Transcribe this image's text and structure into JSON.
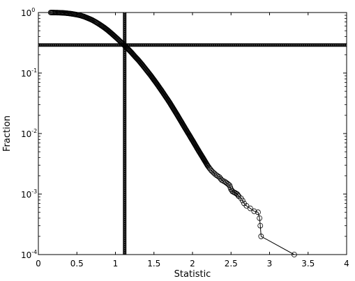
{
  "chart_data": {
    "type": "scatter",
    "title": "",
    "xlabel": "Statistic",
    "ylabel": "Fraction",
    "xlim": [
      0,
      4
    ],
    "ylim": [
      0.0001,
      1
    ],
    "yscale": "log",
    "grid": false,
    "legend": "none",
    "x_ticks": [
      0,
      0.5,
      1,
      1.5,
      2,
      2.5,
      3,
      3.5,
      4
    ],
    "x_tick_labels": [
      "0",
      "0.5",
      "1",
      "1.5",
      "2",
      "2.5",
      "3",
      "3.5",
      "4"
    ],
    "y_ticks": [
      {
        "value": 1,
        "base": "10",
        "exp": "0"
      },
      {
        "value": 0.1,
        "base": "10",
        "exp": "-1"
      },
      {
        "value": 0.01,
        "base": "10",
        "exp": "-2"
      },
      {
        "value": 0.001,
        "base": "10",
        "exp": "-3"
      },
      {
        "value": 0.0001,
        "base": "10",
        "exp": "-4"
      }
    ],
    "reference_lines": {
      "vertical_x": 1.12,
      "horizontal_y": 0.29
    },
    "series": [
      {
        "marker": "circle",
        "line": true,
        "color": "#000000",
        "points": [
          [
            0.16,
            1.0
          ],
          [
            0.2,
            0.998
          ],
          [
            0.25,
            0.995
          ],
          [
            0.3,
            0.99
          ],
          [
            0.35,
            0.98
          ],
          [
            0.4,
            0.965
          ],
          [
            0.45,
            0.945
          ],
          [
            0.5,
            0.92
          ],
          [
            0.55,
            0.89
          ],
          [
            0.6,
            0.85
          ],
          [
            0.65,
            0.8
          ],
          [
            0.7,
            0.75
          ],
          [
            0.75,
            0.69
          ],
          [
            0.8,
            0.63
          ],
          [
            0.85,
            0.57
          ],
          [
            0.9,
            0.51
          ],
          [
            0.95,
            0.45
          ],
          [
            1.0,
            0.395
          ],
          [
            1.05,
            0.345
          ],
          [
            1.1,
            0.3
          ],
          [
            1.15,
            0.26
          ],
          [
            1.2,
            0.224
          ],
          [
            1.25,
            0.19
          ],
          [
            1.3,
            0.162
          ],
          [
            1.35,
            0.136
          ],
          [
            1.4,
            0.113
          ],
          [
            1.45,
            0.094
          ],
          [
            1.5,
            0.077
          ],
          [
            1.55,
            0.063
          ],
          [
            1.6,
            0.051
          ],
          [
            1.65,
            0.041
          ],
          [
            1.7,
            0.033
          ],
          [
            1.75,
            0.026
          ],
          [
            1.8,
            0.0205
          ],
          [
            1.85,
            0.016
          ],
          [
            1.9,
            0.0125
          ],
          [
            1.95,
            0.0098
          ],
          [
            2.0,
            0.0077
          ],
          [
            2.05,
            0.006
          ],
          [
            2.1,
            0.0047
          ],
          [
            2.15,
            0.0037
          ],
          [
            2.2,
            0.0029
          ],
          [
            2.25,
            0.0024
          ],
          [
            2.3,
            0.0021
          ],
          [
            2.35,
            0.0019
          ],
          [
            2.38,
            0.0017
          ],
          [
            2.42,
            0.0016
          ],
          [
            2.45,
            0.0015
          ],
          [
            2.48,
            0.0014
          ],
          [
            2.5,
            0.0012
          ],
          [
            2.52,
            0.0011
          ],
          [
            2.55,
            0.00105
          ],
          [
            2.58,
            0.001
          ],
          [
            2.6,
            0.00092
          ],
          [
            2.63,
            0.00085
          ],
          [
            2.65,
            0.00078
          ],
          [
            2.67,
            0.0007
          ],
          [
            2.7,
            0.00064
          ],
          [
            2.75,
            0.00058
          ],
          [
            2.8,
            0.00052
          ],
          [
            2.85,
            0.0005
          ],
          [
            2.87,
            0.0004
          ],
          [
            2.88,
            0.0003
          ],
          [
            2.89,
            0.0002
          ],
          [
            3.32,
            0.0001
          ]
        ]
      }
    ]
  }
}
